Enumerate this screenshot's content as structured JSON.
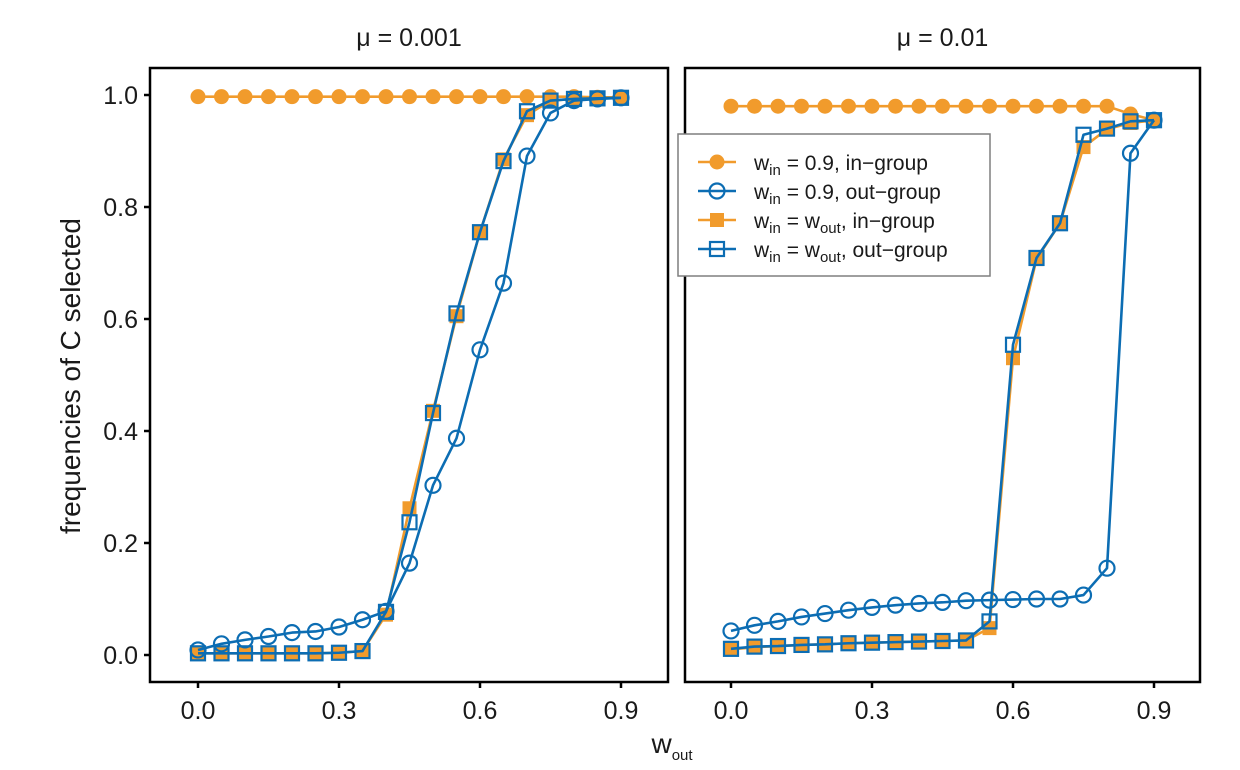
{
  "chart_data": {
    "type": "line",
    "xlabel_main": "w",
    "xlabel_sub": "out",
    "ylabel": "frequencies of C selected",
    "x": [
      0.0,
      0.05,
      0.1,
      0.15,
      0.2,
      0.25,
      0.3,
      0.35,
      0.4,
      0.45,
      0.5,
      0.55,
      0.6,
      0.65,
      0.7,
      0.75,
      0.8,
      0.85,
      0.9
    ],
    "xlim": [
      -0.07,
      0.97
    ],
    "ylim": [
      -0.05,
      1.05
    ],
    "xticks": [
      0.0,
      0.3,
      0.6,
      0.9
    ],
    "xtick_labels": [
      "0.0",
      "0.3",
      "0.6",
      "0.9"
    ],
    "yticks": [
      0.0,
      0.2,
      0.4,
      0.6,
      0.8,
      1.0
    ],
    "ytick_labels": [
      "0.0",
      "0.2",
      "0.4",
      "0.6",
      "0.8",
      "1.0"
    ],
    "grid": false,
    "legend_position": "top-left of right panel",
    "colors": {
      "orange": "#F19B2C",
      "blue": "#0C6DB3"
    },
    "legend": [
      {
        "key": "in09_in",
        "marker": "filled-circle",
        "color": "orange",
        "pre": "w",
        "sub": "in",
        "mid": " = 0.9, in−group",
        "sub2": "",
        "post": ""
      },
      {
        "key": "in09_out",
        "marker": "open-circle",
        "color": "blue",
        "pre": "w",
        "sub": "in",
        "mid": " = 0.9, out−group",
        "sub2": "",
        "post": ""
      },
      {
        "key": "eq_in",
        "marker": "filled-square",
        "color": "orange",
        "pre": "w",
        "sub": "in",
        "mid": " = w",
        "sub2": "out",
        "post": ", in−group"
      },
      {
        "key": "eq_out",
        "marker": "open-square",
        "color": "blue",
        "pre": "w",
        "sub": "in",
        "mid": " = w",
        "sub2": "out",
        "post": ", out−group"
      }
    ],
    "panels": [
      {
        "title": "μ = 0.001",
        "series": [
          {
            "key": "eq_in",
            "values": [
              0.003,
              0.003,
              0.003,
              0.003,
              0.003,
              0.003,
              0.004,
              0.007,
              0.072,
              0.262,
              0.436,
              0.605,
              0.755,
              0.885,
              0.964,
              0.99,
              0.993,
              0.994,
              0.995
            ]
          },
          {
            "key": "in09_in",
            "values": [
              0.997,
              0.997,
              0.997,
              0.997,
              0.997,
              0.997,
              0.997,
              0.997,
              0.997,
              0.997,
              0.997,
              0.997,
              0.997,
              0.997,
              0.997,
              0.997,
              0.997,
              0.996,
              0.996
            ]
          },
          {
            "key": "in09_out",
            "values": [
              0.009,
              0.02,
              0.027,
              0.033,
              0.04,
              0.042,
              0.05,
              0.063,
              0.078,
              0.164,
              0.303,
              0.387,
              0.545,
              0.664,
              0.891,
              0.968,
              0.99,
              0.993,
              0.995
            ]
          },
          {
            "key": "eq_out",
            "values": [
              0.003,
              0.003,
              0.003,
              0.003,
              0.003,
              0.003,
              0.004,
              0.007,
              0.077,
              0.237,
              0.432,
              0.61,
              0.755,
              0.882,
              0.971,
              0.99,
              0.993,
              0.994,
              0.995
            ]
          }
        ]
      },
      {
        "title": "μ = 0.01",
        "series": [
          {
            "key": "eq_in",
            "values": [
              0.01,
              0.014,
              0.016,
              0.018,
              0.019,
              0.021,
              0.022,
              0.023,
              0.024,
              0.025,
              0.026,
              0.048,
              0.53,
              0.707,
              0.771,
              0.907,
              0.939,
              0.95,
              0.955
            ]
          },
          {
            "key": "in09_in",
            "values": [
              0.98,
              0.98,
              0.98,
              0.98,
              0.98,
              0.98,
              0.98,
              0.98,
              0.98,
              0.98,
              0.98,
              0.98,
              0.98,
              0.98,
              0.98,
              0.98,
              0.98,
              0.966,
              0.955
            ]
          },
          {
            "key": "in09_out",
            "values": [
              0.043,
              0.053,
              0.06,
              0.068,
              0.074,
              0.08,
              0.085,
              0.089,
              0.092,
              0.094,
              0.097,
              0.098,
              0.099,
              0.1,
              0.1,
              0.107,
              0.155,
              0.896,
              0.955
            ]
          },
          {
            "key": "eq_out",
            "values": [
              0.011,
              0.015,
              0.016,
              0.018,
              0.019,
              0.021,
              0.022,
              0.023,
              0.024,
              0.025,
              0.026,
              0.06,
              0.554,
              0.709,
              0.771,
              0.929,
              0.94,
              0.953,
              0.955
            ]
          }
        ]
      }
    ]
  }
}
